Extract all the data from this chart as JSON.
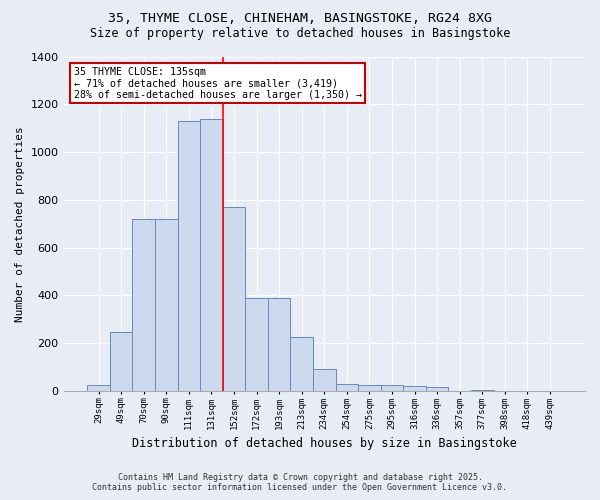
{
  "title1": "35, THYME CLOSE, CHINEHAM, BASINGSTOKE, RG24 8XG",
  "title2": "Size of property relative to detached houses in Basingstoke",
  "xlabel": "Distribution of detached houses by size in Basingstoke",
  "ylabel": "Number of detached properties",
  "bin_labels": [
    "29sqm",
    "49sqm",
    "70sqm",
    "90sqm",
    "111sqm",
    "131sqm",
    "152sqm",
    "172sqm",
    "193sqm",
    "213sqm",
    "234sqm",
    "254sqm",
    "275sqm",
    "295sqm",
    "316sqm",
    "336sqm",
    "357sqm",
    "377sqm",
    "398sqm",
    "418sqm",
    "439sqm"
  ],
  "bar_values": [
    25,
    245,
    720,
    720,
    1130,
    1140,
    770,
    390,
    390,
    225,
    90,
    30,
    25,
    25,
    20,
    15,
    0,
    5,
    0,
    0,
    0
  ],
  "bar_color": "#ccd9ee",
  "bar_edge_color": "#6688bb",
  "bg_color": "#e8edf5",
  "grid_color": "#ffffff",
  "red_line_x": 5.5,
  "annotation_text": "35 THYME CLOSE: 135sqm\n← 71% of detached houses are smaller (3,419)\n28% of semi-detached houses are larger (1,350) →",
  "annotation_box_color": "#ffffff",
  "annotation_box_edge": "#cc0000",
  "ylim": [
    0,
    1400
  ],
  "yticks": [
    0,
    200,
    400,
    600,
    800,
    1000,
    1200,
    1400
  ],
  "footer1": "Contains HM Land Registry data © Crown copyright and database right 2025.",
  "footer2": "Contains public sector information licensed under the Open Government Licence v3.0."
}
